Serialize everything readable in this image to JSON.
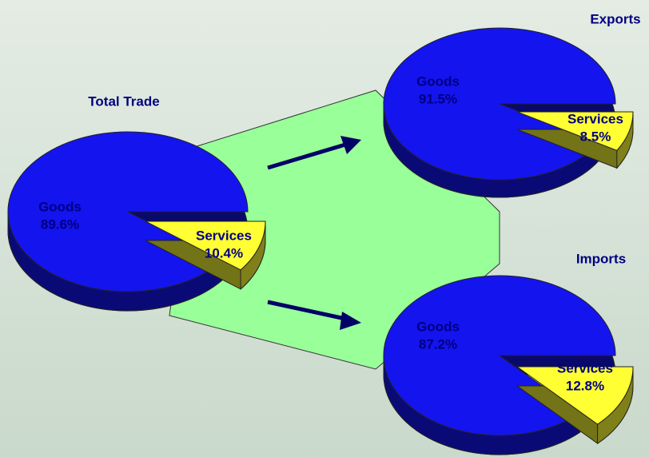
{
  "chart_data": [
    {
      "type": "pie",
      "title": "Total Trade",
      "categories": [
        "Goods",
        "Services"
      ],
      "values": [
        89.6,
        10.4
      ],
      "value_labels": [
        "89.6%",
        "10.4%"
      ],
      "colors": [
        "#1414ee",
        "#ffff33"
      ]
    },
    {
      "type": "pie",
      "title": "Exports",
      "categories": [
        "Goods",
        "Services"
      ],
      "values": [
        91.5,
        8.5
      ],
      "value_labels": [
        "91.5%",
        "8.5%"
      ],
      "colors": [
        "#1414ee",
        "#ffff33"
      ]
    },
    {
      "type": "pie",
      "title": "Imports",
      "categories": [
        "Goods",
        "Services"
      ],
      "values": [
        87.2,
        12.8
      ],
      "value_labels": [
        "87.2%",
        "12.8%"
      ],
      "colors": [
        "#1414ee",
        "#ffff33"
      ]
    }
  ]
}
